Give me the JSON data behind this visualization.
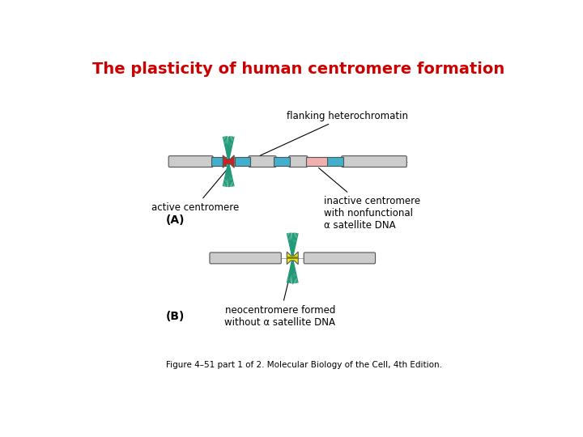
{
  "title": "The plasticity of human centromere formation",
  "title_color": "#cc0000",
  "title_fontsize": 14,
  "caption": "Figure 4–51 part 1 of 2. Molecular Biology of the Cell, 4th Edition.",
  "label_A": "(A)",
  "label_B": "(B)",
  "bg_color": "#ffffff",
  "chromosome_color": "#cccccc",
  "blue_band_color": "#40b0cc",
  "red_center_color": "#cc2222",
  "pink_band_color": "#f0b0b0",
  "yellow_center_color": "#e8e820",
  "yellow_stripe_color": "#888800",
  "spindle_color": "#229977",
  "text_color": "#000000",
  "ann_flanking": "flanking heterochromatin",
  "ann_active": "active centromere",
  "ann_inactive": "inactive centromere\nwith nonfunctional\nα satellite DNA",
  "ann_neo": "neocentromere formed\nwithout α satellite DNA"
}
